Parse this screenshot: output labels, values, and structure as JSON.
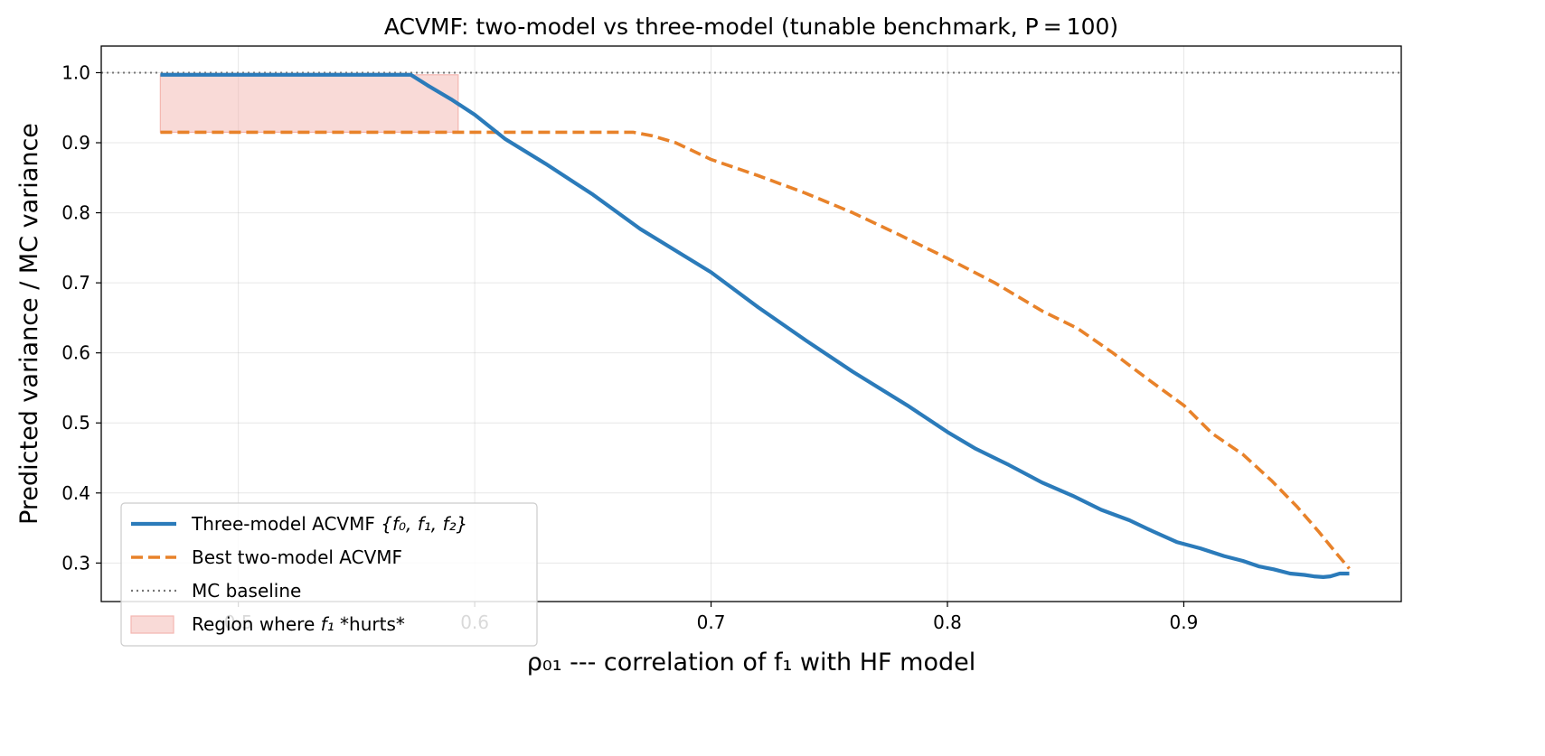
{
  "chart_data": {
    "type": "line",
    "title": "ACVMF: two-model vs three-model  (tunable benchmark, P = 100)",
    "xlabel": "ρ₀₁ --- correlation of f₁ with HF model",
    "ylabel": "Predicted variance / MC variance",
    "xlim": [
      0.442,
      0.992
    ],
    "ylim": [
      0.245,
      1.038
    ],
    "grid": true,
    "x_ticks": [
      0.5,
      0.6,
      0.7,
      0.8,
      0.9
    ],
    "x_tick_labels": [
      "0.5",
      "0.6",
      "0.7",
      "0.8",
      "0.9"
    ],
    "y_ticks": [
      0.3,
      0.4,
      0.5,
      0.6,
      0.7,
      0.8,
      0.9,
      1.0
    ],
    "y_tick_labels": [
      "0.3",
      "0.4",
      "0.5",
      "0.6",
      "0.7",
      "0.8",
      "0.9",
      "1.0"
    ],
    "series": [
      {
        "name": "Three-model ACVMF  {f₀, f₁, f₂}",
        "color": "#2b7bba",
        "style": "solid",
        "x": [
          0.467,
          0.573,
          0.58,
          0.59,
          0.6,
          0.613,
          0.63,
          0.65,
          0.67,
          0.7,
          0.72,
          0.74,
          0.76,
          0.783,
          0.8,
          0.812,
          0.826,
          0.84,
          0.853,
          0.865,
          0.877,
          0.887,
          0.897,
          0.907,
          0.917,
          0.925,
          0.932,
          0.938,
          0.945,
          0.951,
          0.955,
          0.959,
          0.962,
          0.966,
          0.97
        ],
        "values": [
          0.997,
          0.997,
          0.982,
          0.962,
          0.94,
          0.905,
          0.87,
          0.826,
          0.777,
          0.715,
          0.665,
          0.618,
          0.573,
          0.525,
          0.487,
          0.463,
          0.44,
          0.415,
          0.396,
          0.376,
          0.361,
          0.345,
          0.33,
          0.321,
          0.31,
          0.303,
          0.295,
          0.291,
          0.285,
          0.283,
          0.281,
          0.28,
          0.281,
          0.285,
          0.285
        ]
      },
      {
        "name": "Best two-model ACVMF",
        "color": "#e8822a",
        "style": "dashed",
        "x": [
          0.467,
          0.667,
          0.675,
          0.685,
          0.7,
          0.72,
          0.74,
          0.76,
          0.78,
          0.8,
          0.82,
          0.84,
          0.855,
          0.87,
          0.885,
          0.9,
          0.912,
          0.925,
          0.937,
          0.948,
          0.957,
          0.965,
          0.97
        ],
        "values": [
          0.915,
          0.915,
          0.91,
          0.9,
          0.876,
          0.853,
          0.828,
          0.8,
          0.768,
          0.735,
          0.7,
          0.66,
          0.635,
          0.6,
          0.562,
          0.525,
          0.485,
          0.455,
          0.418,
          0.38,
          0.345,
          0.312,
          0.292
        ]
      },
      {
        "name": "MC baseline",
        "color": "#777777",
        "style": "dotted",
        "x": [
          0.442,
          0.992
        ],
        "values": [
          1.0,
          1.0
        ]
      }
    ],
    "shaded_region": {
      "name": "Region where f₁ *hurts*",
      "color": "#f4b6b0",
      "x_start": 0.467,
      "x_end": 0.593,
      "upper": 0.997,
      "lower": 0.915
    },
    "legend_location": "lower-left"
  },
  "legend": {
    "three_model_prefix": "Three-model ACVMF  ",
    "three_model_set": "{f₀, f₁, f₂}",
    "two_model": "Best two-model ACVMF",
    "mc_baseline": "MC baseline",
    "region_prefix": "Region where ",
    "region_var": "f₁",
    "region_suffix": " *hurts*"
  }
}
